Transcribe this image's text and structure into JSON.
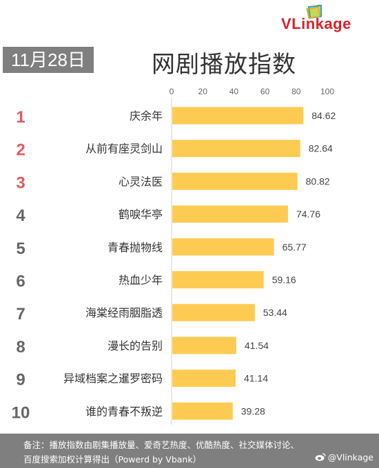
{
  "header": {
    "date": "11月28日",
    "title": "网剧播放指数",
    "brand": "VLinkage"
  },
  "footer": {
    "note_line1": "备注：播放指数由剧集播放量、爱奇艺热度、优酷热度、社交媒体讨论、",
    "note_line2": "百度搜索加权计算得出（Powerd by Vbank）",
    "weibo": "@Vlinkage"
  },
  "colors": {
    "bar": "#fecb52",
    "top_rank": "#e05a5f",
    "rank": "#666666"
  },
  "chart_data": {
    "type": "bar",
    "orientation": "horizontal",
    "title": "网剧播放指数",
    "ranks": [
      "1",
      "2",
      "3",
      "4",
      "5",
      "6",
      "7",
      "8",
      "9",
      "10"
    ],
    "categories": [
      "庆余年",
      "从前有座灵剑山",
      "心灵法医",
      "鹤唳华亭",
      "青春抛物线",
      "热血少年",
      "海棠经雨胭脂透",
      "漫长的告别",
      "异域档案之暹罗密码",
      "谁的青春不叛逆"
    ],
    "values": [
      84.62,
      82.64,
      80.82,
      74.76,
      65.77,
      59.16,
      53.44,
      41.54,
      41.14,
      39.28
    ],
    "value_labels": [
      "84.62",
      "82.64",
      "80.82",
      "74.76",
      "65.77",
      "59.16",
      "53.44",
      "41.54",
      "41.14",
      "39.28"
    ],
    "xlim": [
      0,
      100
    ],
    "xticks": [
      "0",
      "20",
      "40",
      "60",
      "80",
      "100"
    ],
    "axis_position": "top",
    "grid": false
  }
}
